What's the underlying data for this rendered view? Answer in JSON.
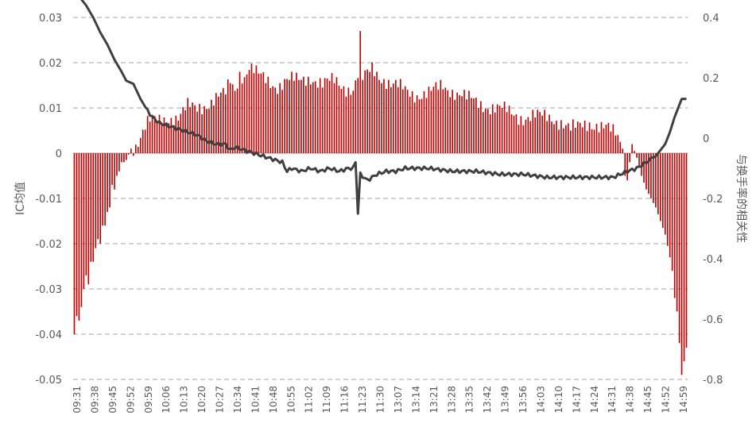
{
  "chart_data": {
    "type": "bar+line",
    "title": "",
    "ylabel_left": "IC均值",
    "ylabel_right": "与换手率的相关性",
    "ylim_left": [
      -0.05,
      0.03
    ],
    "ylim_right": [
      -0.8,
      0.4
    ],
    "yticks_left": [
      "0.03",
      "0.02",
      "0.01",
      "0",
      "-0.01",
      "-0.02",
      "-0.03",
      "-0.04",
      "-0.05"
    ],
    "yticks_right": [
      "0.4",
      "0.2",
      "0",
      "-0.2",
      "-0.4",
      "-0.6",
      "-0.8"
    ],
    "xtick_labels": [
      "09:31",
      "09:38",
      "09:45",
      "09:52",
      "09:59",
      "10:06",
      "10:13",
      "10:20",
      "10:27",
      "10:34",
      "10:41",
      "10:48",
      "10:55",
      "11:02",
      "11:09",
      "11:16",
      "11:23",
      "11:30",
      "13:07",
      "13:14",
      "13:21",
      "13:28",
      "13:35",
      "13:42",
      "13:49",
      "13:56",
      "14:03",
      "14:10",
      "14:17",
      "14:24",
      "14:31",
      "14:38",
      "14:45",
      "14:52",
      "14:59"
    ],
    "grid": "horizontal dashed",
    "colors": {
      "bar": "#c00000",
      "line": "#404040",
      "grid": "#a6a6a6",
      "text": "#595959"
    },
    "series": [
      {
        "name": "",
        "axis": "left",
        "kind": "bar",
        "values": []
      },
      {
        "name": "",
        "axis": "right",
        "kind": "line",
        "values": []
      }
    ],
    "bar_anchors": [
      [
        0,
        -0.04
      ],
      [
        1,
        -0.036
      ],
      [
        2,
        -0.037
      ],
      [
        3,
        -0.034
      ],
      [
        4,
        -0.03
      ],
      [
        5,
        -0.027
      ],
      [
        6,
        -0.029
      ],
      [
        7,
        -0.024
      ],
      [
        8,
        -0.024
      ],
      [
        9,
        -0.021
      ],
      [
        10,
        -0.019
      ],
      [
        11,
        -0.02
      ],
      [
        12,
        -0.016
      ],
      [
        13,
        -0.016
      ],
      [
        14,
        -0.013
      ],
      [
        15,
        -0.012
      ],
      [
        16,
        -0.007
      ],
      [
        17,
        -0.008
      ],
      [
        18,
        -0.005
      ],
      [
        19,
        -0.004
      ],
      [
        20,
        -0.002
      ],
      [
        21,
        -0.002
      ],
      [
        22,
        -0.0015
      ],
      [
        24,
        0.001
      ],
      [
        26,
        0.002
      ],
      [
        28,
        0.004
      ],
      [
        30,
        0.006
      ],
      [
        32,
        0.007
      ],
      [
        34,
        0.007
      ],
      [
        36,
        0.007
      ],
      [
        40,
        0.008
      ],
      [
        44,
        0.008
      ],
      [
        48,
        0.01
      ],
      [
        52,
        0.01
      ],
      [
        56,
        0.011
      ],
      [
        60,
        0.012
      ],
      [
        64,
        0.013
      ],
      [
        66,
        0.016
      ],
      [
        68,
        0.014
      ],
      [
        70,
        0.018
      ],
      [
        72,
        0.017
      ],
      [
        74,
        0.019
      ],
      [
        78,
        0.017
      ],
      [
        82,
        0.016
      ],
      [
        86,
        0.015
      ],
      [
        90,
        0.016
      ],
      [
        95,
        0.016
      ],
      [
        100,
        0.017
      ],
      [
        105,
        0.015
      ],
      [
        110,
        0.016
      ],
      [
        114,
        0.015
      ],
      [
        118,
        0.014
      ],
      [
        120,
        0.017
      ],
      [
        121,
        0.025
      ],
      [
        122,
        0.016
      ],
      [
        126,
        0.019
      ],
      [
        130,
        0.017
      ],
      [
        134,
        0.015
      ],
      [
        140,
        0.014
      ],
      [
        146,
        0.013
      ],
      [
        150,
        0.013
      ],
      [
        156,
        0.015
      ],
      [
        160,
        0.014
      ],
      [
        166,
        0.012
      ],
      [
        172,
        0.011
      ],
      [
        178,
        0.01
      ],
      [
        184,
        0.009
      ],
      [
        190,
        0.008
      ],
      [
        196,
        0.008
      ],
      [
        202,
        0.008
      ],
      [
        206,
        0.007
      ],
      [
        210,
        0.005
      ],
      [
        214,
        0.006
      ],
      [
        218,
        0.007
      ],
      [
        222,
        0.006
      ],
      [
        226,
        0.005
      ],
      [
        230,
        0.004
      ],
      [
        232,
        0.001
      ],
      [
        233,
        -0.005
      ],
      [
        234,
        -0.006
      ],
      [
        236,
        0.002
      ],
      [
        238,
        -0.001
      ],
      [
        240,
        -0.005
      ],
      [
        242,
        -0.008
      ],
      [
        244,
        -0.01
      ],
      [
        246,
        -0.012
      ],
      [
        248,
        -0.015
      ],
      [
        250,
        -0.018
      ],
      [
        252,
        -0.023
      ],
      [
        253,
        -0.026
      ],
      [
        254,
        -0.032
      ],
      [
        255,
        -0.035
      ],
      [
        256,
        -0.042
      ],
      [
        257,
        -0.049
      ],
      [
        259,
        -0.043
      ]
    ],
    "line_anchors": [
      [
        0,
        0.48
      ],
      [
        1,
        0.49
      ],
      [
        3,
        0.46
      ],
      [
        5,
        0.44
      ],
      [
        8,
        0.4
      ],
      [
        11,
        0.35
      ],
      [
        14,
        0.31
      ],
      [
        17,
        0.26
      ],
      [
        20,
        0.22
      ],
      [
        22,
        0.19
      ],
      [
        25,
        0.18
      ],
      [
        28,
        0.13
      ],
      [
        31,
        0.09
      ],
      [
        33,
        0.07
      ],
      [
        36,
        0.05
      ],
      [
        40,
        0.04
      ],
      [
        44,
        0.03
      ],
      [
        48,
        0.02
      ],
      [
        52,
        0.01
      ],
      [
        56,
        -0.01
      ],
      [
        60,
        -0.02
      ],
      [
        64,
        -0.02
      ],
      [
        66,
        -0.04
      ],
      [
        68,
        -0.03
      ],
      [
        72,
        -0.04
      ],
      [
        76,
        -0.05
      ],
      [
        80,
        -0.06
      ],
      [
        84,
        -0.07
      ],
      [
        88,
        -0.08
      ],
      [
        90,
        -0.11
      ],
      [
        92,
        -0.1
      ],
      [
        96,
        -0.11
      ],
      [
        100,
        -0.1
      ],
      [
        104,
        -0.11
      ],
      [
        108,
        -0.1
      ],
      [
        112,
        -0.11
      ],
      [
        116,
        -0.1
      ],
      [
        118,
        -0.1
      ],
      [
        119,
        -0.08
      ],
      [
        120,
        -0.25
      ],
      [
        121,
        -0.12
      ],
      [
        124,
        -0.14
      ],
      [
        128,
        -0.12
      ],
      [
        132,
        -0.11
      ],
      [
        136,
        -0.11
      ],
      [
        140,
        -0.1
      ],
      [
        150,
        -0.1
      ],
      [
        160,
        -0.11
      ],
      [
        170,
        -0.11
      ],
      [
        180,
        -0.12
      ],
      [
        190,
        -0.12
      ],
      [
        200,
        -0.13
      ],
      [
        210,
        -0.13
      ],
      [
        220,
        -0.13
      ],
      [
        228,
        -0.13
      ],
      [
        234,
        -0.11
      ],
      [
        238,
        -0.1
      ],
      [
        242,
        -0.08
      ],
      [
        246,
        -0.06
      ],
      [
        250,
        -0.02
      ],
      [
        252,
        0.02
      ],
      [
        254,
        0.07
      ],
      [
        256,
        0.11
      ],
      [
        257,
        0.13
      ]
    ]
  }
}
